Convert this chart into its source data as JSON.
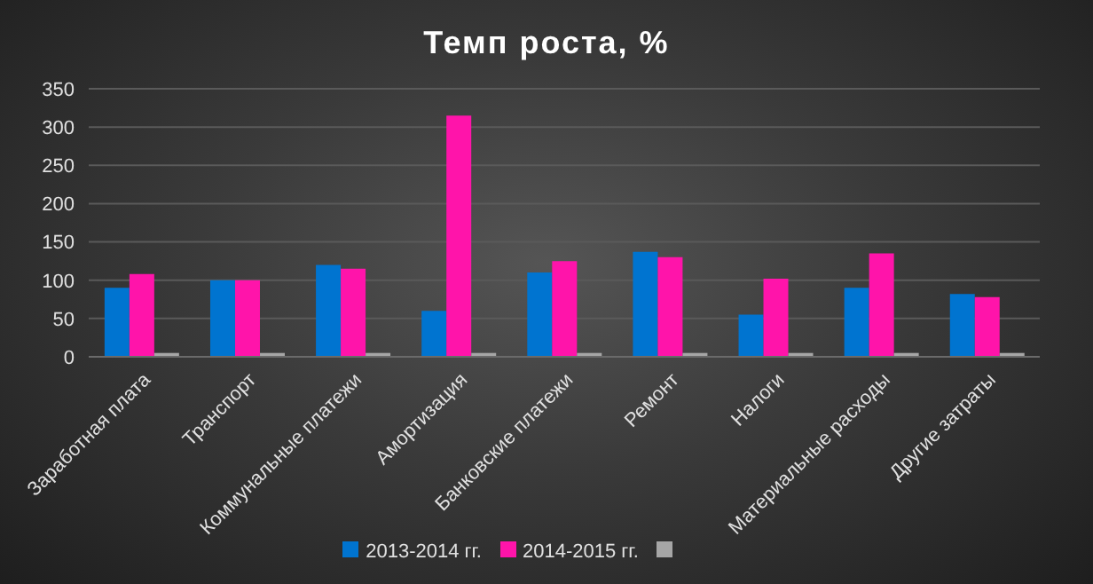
{
  "chart_data": {
    "type": "bar",
    "title": "Темп роста, %",
    "categories": [
      "Заработная плата",
      "Транспорт",
      "Коммунальные платежи",
      "Амортизация",
      "Банковские платежи",
      "Ремонт",
      "Налоги",
      "Материальные расходы",
      "Другие затраты"
    ],
    "series": [
      {
        "name": "2013-2014 гг.",
        "color": "#0074d0",
        "values": [
          90,
          100,
          120,
          60,
          110,
          137,
          55,
          90,
          82
        ]
      },
      {
        "name": "2014-2015 гг.",
        "color": "#ff14aa",
        "values": [
          108,
          100,
          115,
          315,
          125,
          130,
          102,
          135,
          78
        ]
      },
      {
        "color": "#a6a6a6",
        "values": [
          5,
          5,
          5,
          5,
          5,
          5,
          5,
          5,
          5
        ]
      }
    ],
    "ylim": [
      0,
      350
    ],
    "yticks": [
      0,
      50,
      100,
      150,
      200,
      250,
      300,
      350
    ],
    "grid": "y",
    "legend": "bottom"
  }
}
